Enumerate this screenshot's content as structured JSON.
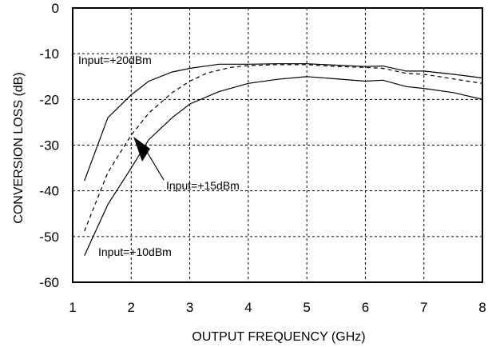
{
  "chart_data": {
    "type": "line",
    "xlabel": "OUTPUT  FREQUENCY (GHz)",
    "ylabel": "CONVERSION LOSS (dB)",
    "xlim": [
      1,
      8
    ],
    "ylim": [
      -60,
      0
    ],
    "xticks": [
      "1",
      "2",
      "3",
      "4",
      "5",
      "6",
      "7",
      "8"
    ],
    "yticks": [
      "0",
      "-10",
      "-20",
      "-30",
      "-40",
      "-50",
      "-60"
    ],
    "grid": true,
    "series": [
      {
        "name": "Input=+20dBm",
        "style": "solid",
        "x": [
          1.2,
          1.6,
          2.0,
          2.3,
          2.7,
          3.0,
          3.5,
          4.0,
          4.5,
          5.0,
          5.5,
          6.0,
          6.3,
          6.7,
          7.0,
          7.5,
          8.0
        ],
        "y": [
          -37.8,
          -24,
          -19,
          -16,
          -14,
          -13.2,
          -12.3,
          -12.3,
          -12.2,
          -12.2,
          -12.5,
          -12.8,
          -12.7,
          -13.8,
          -13.8,
          -14.5,
          -15.3
        ]
      },
      {
        "name": "Input=+15dBm",
        "style": "dashed",
        "x": [
          1.2,
          1.6,
          2.0,
          2.3,
          2.7,
          3.0,
          3.3,
          3.7,
          4.0,
          4.5,
          5.0,
          5.5,
          6.0,
          6.3,
          6.7,
          7.0,
          7.5,
          8.0
        ],
        "y": [
          -48.8,
          -36,
          -27.8,
          -23,
          -18.5,
          -16,
          -14.2,
          -13,
          -12.6,
          -12.4,
          -12.4,
          -12.8,
          -13,
          -13.2,
          -14.3,
          -14.5,
          -15.5,
          -16.5
        ]
      },
      {
        "name": "Input=+10dBm",
        "style": "solid",
        "x": [
          1.2,
          1.6,
          2.0,
          2.3,
          2.7,
          3.0,
          3.5,
          4.0,
          4.5,
          5.0,
          5.5,
          6.0,
          6.3,
          6.7,
          7.0,
          7.5,
          8.0
        ],
        "y": [
          -54.2,
          -43,
          -35,
          -28.8,
          -24,
          -21,
          -18.3,
          -16.5,
          -15.6,
          -15,
          -15.5,
          -16,
          -15.8,
          -17.2,
          -17.6,
          -18.5,
          -20
        ]
      }
    ],
    "annotations": [
      "Input=+20dBm",
      "Input=+15dBm",
      "Input=+10dBm"
    ]
  }
}
